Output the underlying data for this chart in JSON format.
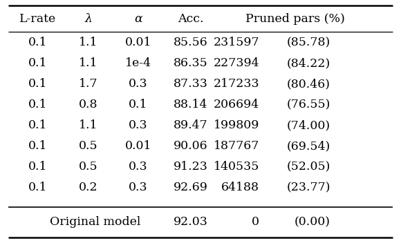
{
  "headers": [
    "L-rate",
    "λ",
    "α",
    "Acc.",
    "Pruned pars (%)"
  ],
  "header_italic": [
    false,
    true,
    true,
    false,
    false
  ],
  "rows": [
    [
      "0.1",
      "1.1",
      "0.01",
      "85.56",
      "231597",
      "(85.78)"
    ],
    [
      "0.1",
      "1.1",
      "1e-4",
      "86.35",
      "227394",
      "(84.22)"
    ],
    [
      "0.1",
      "1.7",
      "0.3",
      "87.33",
      "217233",
      "(80.46)"
    ],
    [
      "0.1",
      "0.8",
      "0.1",
      "88.14",
      "206694",
      "(76.55)"
    ],
    [
      "0.1",
      "1.1",
      "0.3",
      "89.47",
      "199809",
      "(74.00)"
    ],
    [
      "0.1",
      "0.5",
      "0.01",
      "90.06",
      "187767",
      "(69.54)"
    ],
    [
      "0.1",
      "0.5",
      "0.3",
      "91.23",
      "140535",
      "(52.05)"
    ],
    [
      "0.1",
      "0.2",
      "0.3",
      "92.69",
      "64188",
      "(23.77)"
    ]
  ],
  "footer": [
    "Original model",
    "92.03",
    "0",
    "(0.00)"
  ],
  "bg_color": "#ffffff",
  "text_color": "#000000",
  "fontsize": 12.5
}
